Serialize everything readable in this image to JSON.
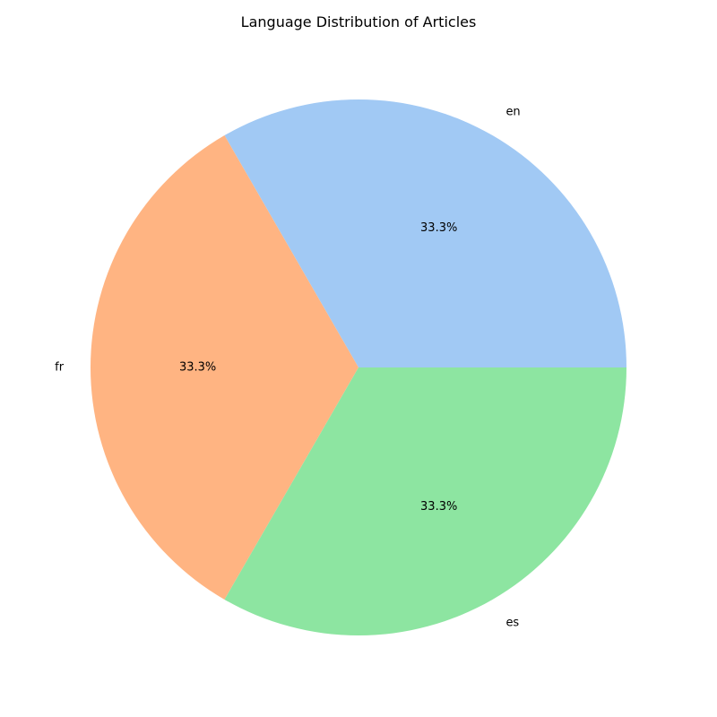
{
  "chart_data": {
    "type": "pie",
    "title": "Language Distribution of Articles",
    "categories": [
      "en",
      "fr",
      "es"
    ],
    "values": [
      1,
      1,
      1
    ],
    "percent_labels": [
      "33.3%",
      "33.3%",
      "33.3%"
    ],
    "colors": [
      "#a1c9f4",
      "#ffb482",
      "#8de5a1"
    ],
    "start_angle_deg": 0,
    "direction": "counterclockwise",
    "legend": "none"
  }
}
